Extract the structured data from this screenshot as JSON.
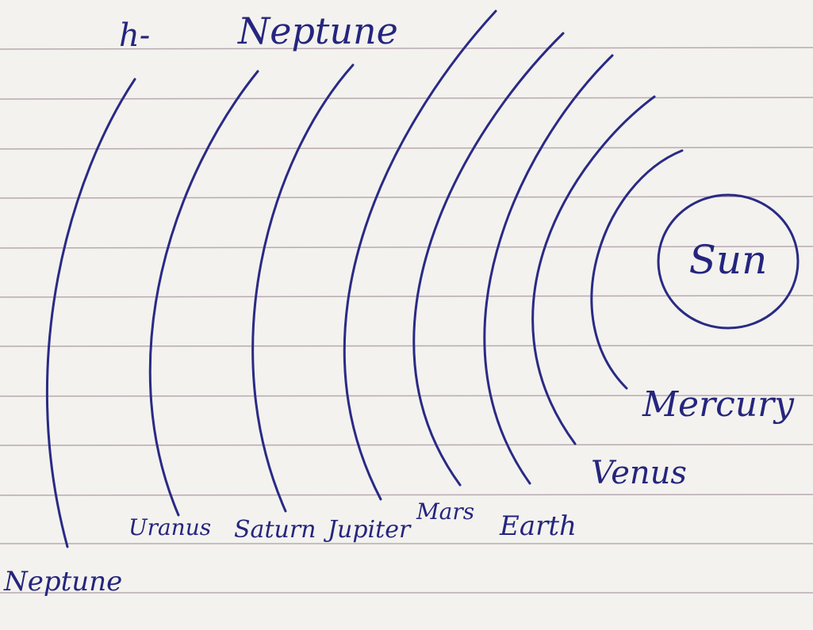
{
  "header": {
    "prefix": "h-",
    "answer": "Neptune"
  },
  "sun": {
    "label": "Sun"
  },
  "nodes": [
    {
      "label": "Mercury"
    },
    {
      "label": "Venus"
    },
    {
      "label": "Earth"
    },
    {
      "label": "Mars"
    },
    {
      "label": "Jupiter"
    },
    {
      "label": "Saturn"
    },
    {
      "label": "Uranus"
    },
    {
      "label": "Neptune"
    }
  ]
}
